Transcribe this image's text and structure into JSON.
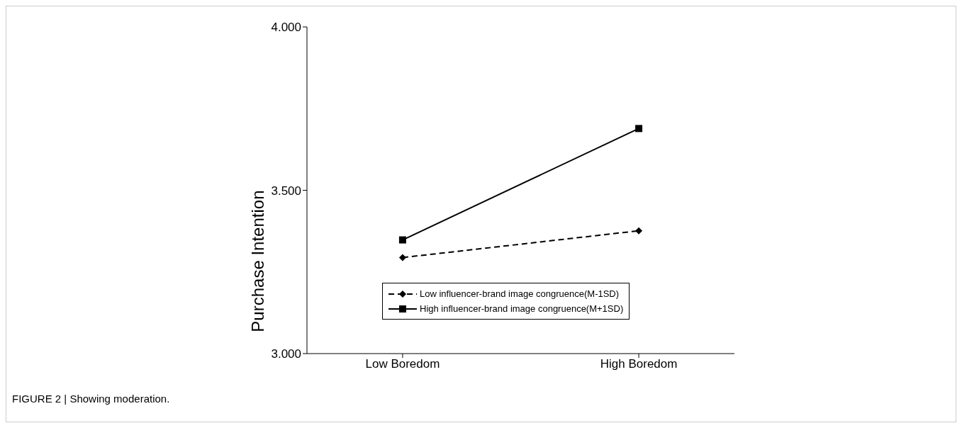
{
  "chart_data": {
    "type": "line",
    "ylabel": "Purchase Intention",
    "categories": [
      "Low Boredom",
      "High Boredom"
    ],
    "series": [
      {
        "name": "Low influencer-brand image congruence(M-1SD)",
        "color": "#000000",
        "values": [
          3.294,
          3.376
        ],
        "marker": "diamond",
        "line_style": "dashed"
      },
      {
        "name": "High influencer-brand image congruence(M+1SD)",
        "color": "#000000",
        "values": [
          3.348,
          3.689
        ],
        "marker": "square",
        "line_style": "solid"
      }
    ],
    "ylim": [
      3,
      4
    ],
    "yticks": [
      {
        "value": 3,
        "label": "3.000"
      },
      {
        "value": 3.5,
        "label": "3.500"
      },
      {
        "value": 4,
        "label": "4.000"
      }
    ],
    "grid": false,
    "legend": "bottom",
    "annotations": [
      "FIGURE 2 | Showing moderation."
    ]
  }
}
